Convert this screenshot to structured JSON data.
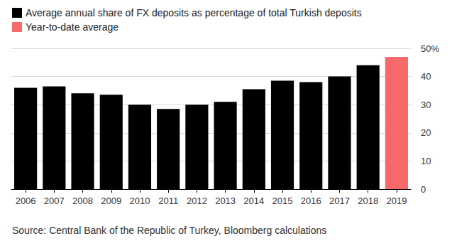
{
  "chart_data": {
    "type": "bar",
    "categories": [
      "2006",
      "2007",
      "2008",
      "2009",
      "2010",
      "2011",
      "2012",
      "2013",
      "2014",
      "2015",
      "2016",
      "2017",
      "2018",
      "2019"
    ],
    "series": [
      {
        "name": "Average annual share of FX deposits as percentage of total Turkish deposits",
        "color": "#000000",
        "values": [
          36,
          36.5,
          34,
          33.5,
          30,
          28.5,
          30,
          31,
          35.5,
          38.5,
          38,
          40,
          44,
          null
        ]
      },
      {
        "name": "Year-to-date average",
        "color": "#f7696b",
        "values": [
          null,
          null,
          null,
          null,
          null,
          null,
          null,
          null,
          null,
          null,
          null,
          null,
          null,
          47
        ]
      }
    ],
    "ylim": [
      0,
      50
    ],
    "yticks": [
      0,
      10,
      20,
      30,
      40,
      {
        "value": 50,
        "label": "50%"
      }
    ],
    "grid": true,
    "legend": "top-left",
    "source": "Source: Central Bank of the Republic of Turkey, Bloomberg calculations"
  }
}
